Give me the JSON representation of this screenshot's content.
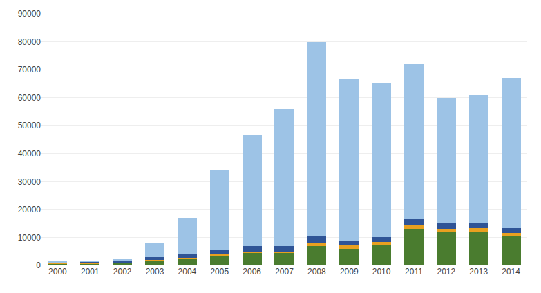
{
  "chart_data": {
    "type": "bar",
    "stacked": true,
    "categories": [
      "2000",
      "2001",
      "2002",
      "2003",
      "2004",
      "2005",
      "2006",
      "2007",
      "2008",
      "2009",
      "2010",
      "2011",
      "2012",
      "2013",
      "2014"
    ],
    "series": [
      {
        "color": "#4a7c2f",
        "values": [
          700,
          700,
          900,
          1800,
          2500,
          3500,
          4500,
          4500,
          7000,
          6000,
          7500,
          13000,
          12000,
          12000,
          10500
        ]
      },
      {
        "color": "#e8a020",
        "values": [
          100,
          100,
          150,
          200,
          300,
          400,
          500,
          500,
          1000,
          1500,
          1000,
          1500,
          1000,
          1200,
          1200
        ]
      },
      {
        "color": "#2f5496",
        "values": [
          300,
          400,
          600,
          900,
          1200,
          1600,
          2000,
          1800,
          2500,
          1500,
          1500,
          2000,
          2000,
          2000,
          1800
        ]
      },
      {
        "color": "#9dc3e6",
        "values": [
          500,
          600,
          800,
          5100,
          13000,
          28500,
          39500,
          49200,
          69500,
          57500,
          55000,
          55500,
          45000,
          45800,
          53500
        ]
      }
    ],
    "ylim": [
      0,
      90000
    ],
    "yticks": [
      0,
      10000,
      20000,
      30000,
      40000,
      50000,
      60000,
      70000,
      80000,
      90000
    ],
    "grid": true
  }
}
